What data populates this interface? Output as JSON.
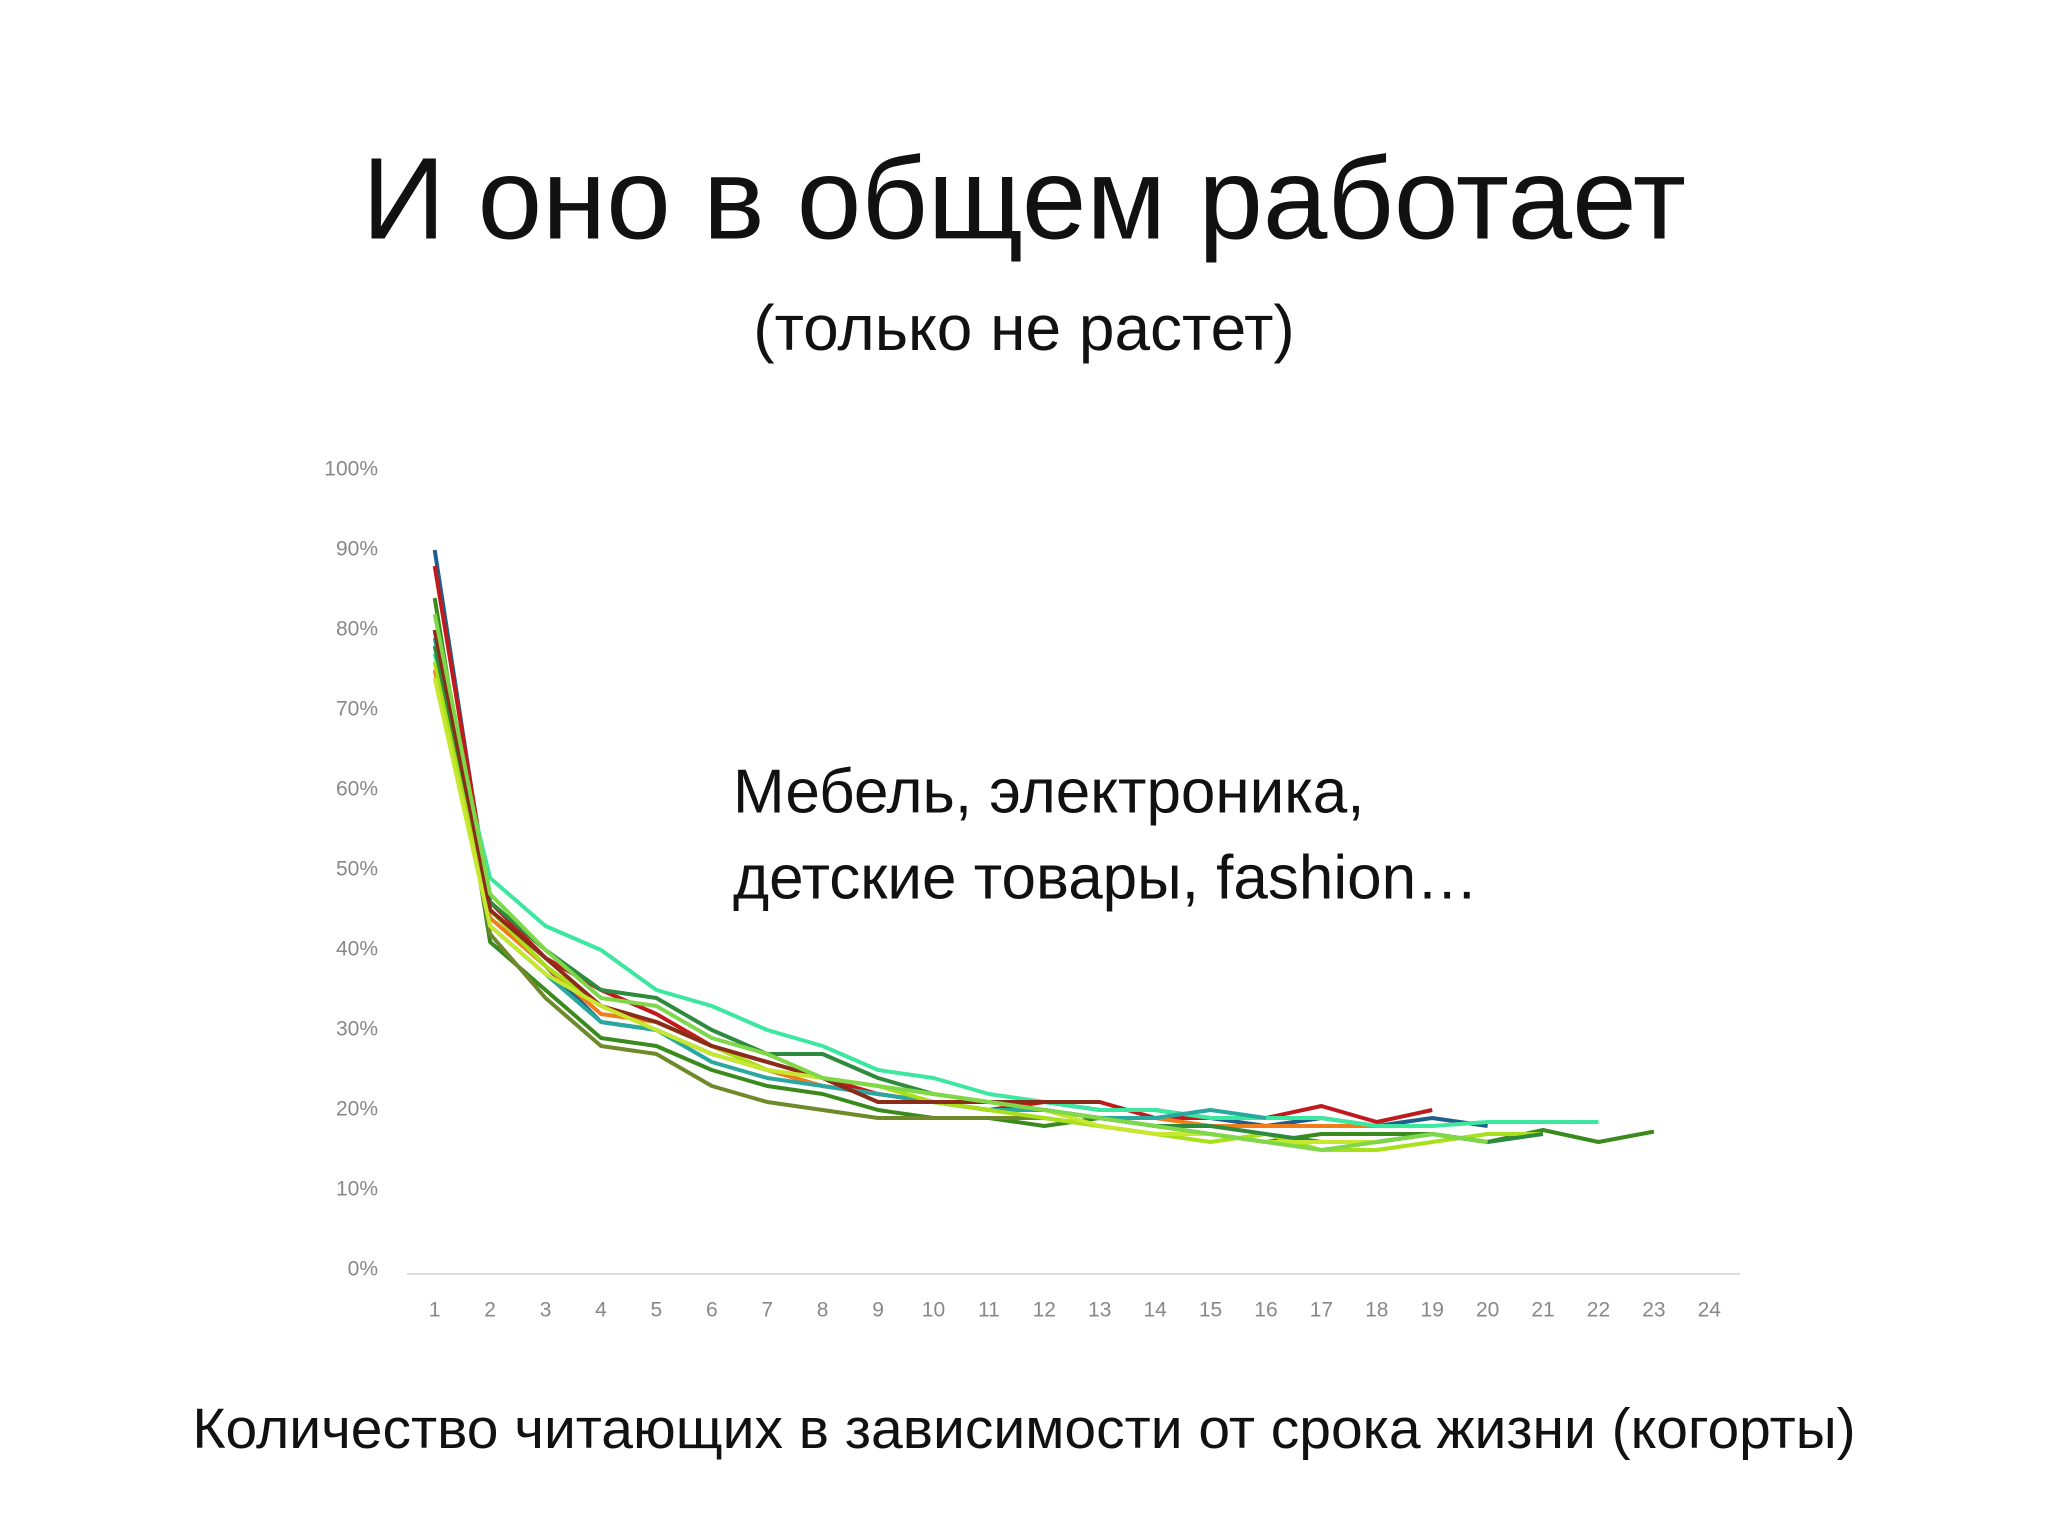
{
  "chart_data": {
    "type": "line",
    "title": "И оно в общем работает",
    "subtitle": "(только не растет)",
    "annotation": [
      "Мебель, электроника,",
      "детские товары, fashion…"
    ],
    "caption": "Количество читающих в зависимости от срока жизни (когорты)",
    "x": [
      1,
      2,
      3,
      4,
      5,
      6,
      7,
      8,
      9,
      10,
      11,
      12,
      13,
      14,
      15,
      16,
      17,
      18,
      19,
      20,
      21,
      22,
      23,
      24
    ],
    "xlim": [
      0.5,
      24.5
    ],
    "xticks": [
      1,
      2,
      3,
      4,
      5,
      6,
      7,
      8,
      9,
      10,
      11,
      12,
      13,
      14,
      15,
      16,
      17,
      18,
      19,
      20,
      21,
      22,
      23,
      24
    ],
    "ylim": [
      0,
      100
    ],
    "yticks": [
      {
        "value": 0,
        "label": "0%"
      },
      {
        "value": 10,
        "label": "10%"
      },
      {
        "value": 20,
        "label": "20%"
      },
      {
        "value": 30,
        "label": "30%"
      },
      {
        "value": 40,
        "label": "40%"
      },
      {
        "value": 50,
        "label": "50%"
      },
      {
        "value": 60,
        "label": "60%"
      },
      {
        "value": 70,
        "label": "70%"
      },
      {
        "value": 80,
        "label": "80%"
      },
      {
        "value": 90,
        "label": "90%"
      },
      {
        "value": 100,
        "label": "100%"
      }
    ],
    "grid": false,
    "series": [
      {
        "color": "#1f5f8b",
        "values": [
          90,
          45,
          38,
          31,
          30,
          27,
          25,
          23,
          22,
          21,
          21,
          21,
          20,
          20,
          19,
          18,
          19,
          18,
          19,
          18,
          null,
          null,
          null,
          null
        ]
      },
      {
        "color": "#c0191e",
        "values": [
          88,
          46,
          39,
          35,
          32,
          28,
          26,
          24,
          22,
          21,
          20,
          21,
          21,
          19,
          19,
          19,
          20.5,
          18.5,
          20,
          null,
          null,
          null,
          null,
          null
        ]
      },
      {
        "color": "#f07d1a",
        "values": [
          75,
          44,
          38,
          32,
          31,
          28,
          25,
          23,
          22,
          21,
          20,
          20,
          19,
          19,
          18,
          18,
          18,
          18,
          null,
          null,
          null,
          null,
          null,
          null
        ]
      },
      {
        "color": "#3a8a1e",
        "values": [
          84,
          41,
          35,
          29,
          28,
          25,
          23,
          22,
          20,
          19,
          19,
          18,
          19,
          18,
          17,
          16,
          17,
          17,
          17,
          16,
          17.5,
          16,
          17.3,
          null
        ]
      },
      {
        "color": "#6f8a2a",
        "values": [
          80,
          42,
          34,
          28,
          27,
          23,
          21,
          20,
          19,
          19,
          19,
          19,
          18,
          17,
          17,
          16,
          16,
          16,
          17,
          null,
          null,
          null,
          null,
          null
        ]
      },
      {
        "color": "#3ce8a0",
        "values": [
          77,
          49,
          43,
          40,
          35,
          33,
          30,
          28,
          25,
          24,
          22,
          21,
          20,
          20,
          19,
          19,
          19,
          18,
          18,
          18.5,
          18.5,
          18.5,
          null,
          null
        ]
      },
      {
        "color": "#2aa8a0",
        "values": [
          79,
          43,
          37,
          31,
          30,
          26,
          24,
          23,
          22,
          21,
          20,
          20,
          19,
          19,
          20,
          19,
          null,
          null,
          null,
          null,
          null,
          null,
          null,
          null
        ]
      },
      {
        "color": "#a8e01a",
        "values": [
          76,
          45,
          38,
          33,
          31,
          28,
          25,
          24,
          23,
          21,
          20,
          19,
          18,
          17,
          16,
          17,
          15,
          15,
          16,
          17,
          17,
          null,
          null,
          null
        ]
      },
      {
        "color": "#2e8b3e",
        "values": [
          78,
          46,
          40,
          35,
          34,
          30,
          27,
          27,
          24,
          22,
          21,
          20,
          19,
          18,
          18,
          17,
          16,
          16,
          17,
          16,
          17,
          null,
          null,
          null
        ]
      },
      {
        "color": "#8b2b1a",
        "values": [
          80,
          45,
          39,
          33,
          31,
          28,
          26,
          24,
          21,
          21,
          21,
          21,
          21,
          null,
          null,
          null,
          null,
          null,
          null,
          null,
          null,
          null,
          null,
          null
        ]
      },
      {
        "color": "#c8e830",
        "values": [
          74,
          43,
          37,
          33,
          30,
          27,
          25,
          24,
          23,
          22,
          21,
          20,
          18,
          17,
          17,
          16,
          16,
          16,
          null,
          null,
          null,
          null,
          null,
          null
        ]
      },
      {
        "color": "#7fd84a",
        "values": [
          82,
          47,
          40,
          34,
          33,
          29,
          27,
          24,
          23,
          22,
          21,
          20,
          19,
          18,
          17,
          16,
          15,
          16,
          17,
          16,
          null,
          null,
          null,
          null
        ]
      }
    ]
  }
}
